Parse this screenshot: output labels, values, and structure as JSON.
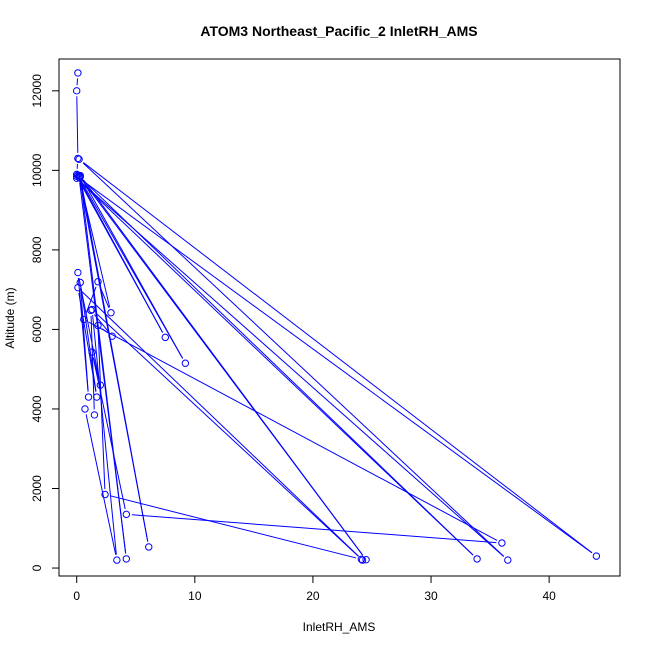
{
  "chart_data": {
    "type": "line",
    "title": "ATOM3 Northeast_Pacific_2 InletRH_AMS",
    "xlabel": "InletRH_AMS",
    "ylabel": "Altitude (m)",
    "xlim": [
      -1.5,
      46
    ],
    "ylim": [
      -200,
      12800
    ],
    "x_ticks": [
      0,
      10,
      20,
      30,
      40
    ],
    "y_ticks": [
      0,
      2000,
      4000,
      6000,
      8000,
      10000,
      12000
    ],
    "grid": false,
    "legend": "none",
    "marker": "open-circle",
    "color": "#0000ff",
    "series": [
      {
        "points": [
          [
            0.1,
            12450
          ],
          [
            0.0,
            12000
          ],
          [
            0.1,
            10300
          ],
          [
            0.0,
            9900
          ],
          [
            7.5,
            5800
          ],
          [
            0.0,
            9850
          ],
          [
            44.0,
            300
          ],
          [
            0.2,
            10280
          ],
          [
            36.5,
            200
          ],
          [
            0.0,
            9800
          ],
          [
            33.9,
            230
          ],
          [
            0.1,
            9880
          ],
          [
            9.2,
            5150
          ],
          [
            0.3,
            9870
          ],
          [
            24.5,
            210
          ],
          [
            0.2,
            9860
          ],
          [
            6.1,
            530
          ],
          [
            0.3,
            9840
          ],
          [
            4.2,
            230
          ],
          [
            0.2,
            9820
          ],
          [
            2.9,
            6420
          ],
          [
            1.8,
            7200
          ],
          [
            0.6,
            6250
          ],
          [
            36.0,
            630
          ],
          [
            4.2,
            1350
          ],
          [
            1.3,
            5430
          ],
          [
            2.0,
            4600
          ],
          [
            0.1,
            7430
          ],
          [
            1.0,
            4300
          ],
          [
            0.3,
            7180
          ],
          [
            1.7,
            4300
          ],
          [
            0.1,
            7050
          ],
          [
            24.2,
            200
          ],
          [
            1.3,
            6500
          ],
          [
            3.4,
            200
          ],
          [
            0.7,
            4000
          ],
          [
            1.5,
            3850
          ],
          [
            1.2,
            6480
          ],
          [
            3.0,
            5830
          ],
          [
            1.8,
            6100
          ],
          [
            2.4,
            1850
          ],
          [
            24.1,
            220
          ]
        ]
      }
    ]
  }
}
